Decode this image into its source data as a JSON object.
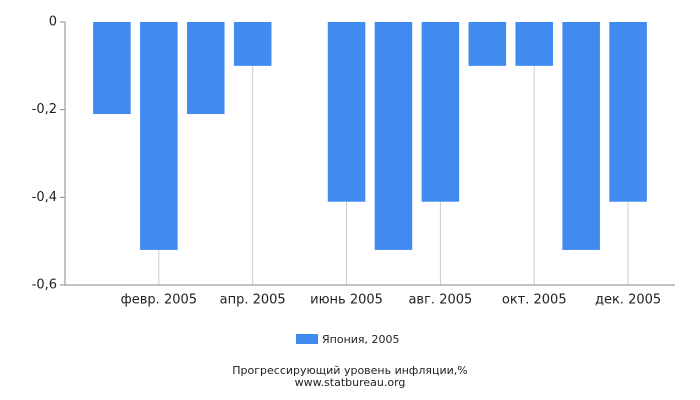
{
  "chart_data": {
    "type": "bar",
    "categories": [
      null,
      "февр. 2005",
      null,
      "апр. 2005",
      null,
      "июнь 2005",
      null,
      "авг. 2005",
      null,
      "окт. 2005",
      null,
      "дек. 2005"
    ],
    "series": [
      {
        "name": "Япония, 2005",
        "color": "#418af0",
        "values": [
          -0.21,
          -0.52,
          -0.21,
          -0.1,
          0,
          -0.41,
          -0.52,
          -0.41,
          -0.1,
          -0.1,
          -0.52,
          -0.41
        ]
      }
    ],
    "ylim": [
      -0.6,
      0
    ],
    "yticks": [
      0,
      {
        "value": -0.2,
        "label": "-0,2"
      },
      {
        "value": -0.4,
        "label": "-0,4"
      },
      {
        "value": -0.6,
        "label": "-0,6"
      }
    ],
    "grid": true,
    "legend": "bottom",
    "title": "Прогрессирующий уровень инфляции,%",
    "subtitle": "www.statbureau.org"
  }
}
